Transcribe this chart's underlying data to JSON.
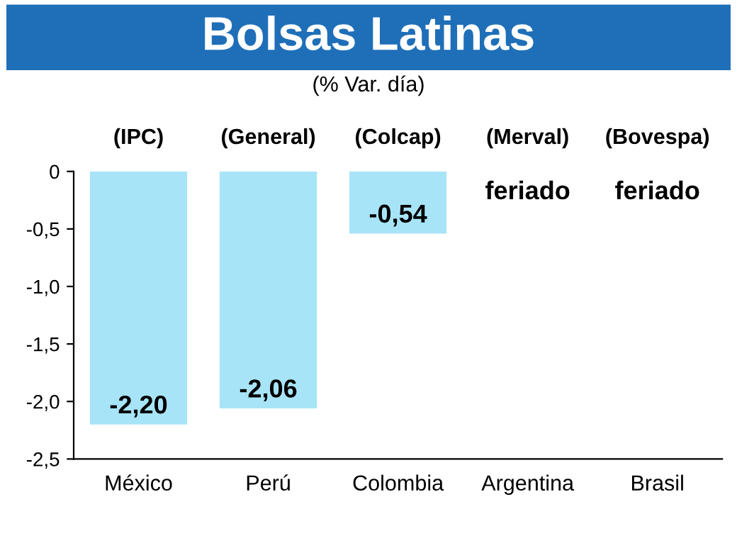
{
  "chart_data": {
    "type": "bar",
    "title": "Bolsas Latinas",
    "subtitle": "(% Var. día)",
    "categories": [
      "México",
      "Perú",
      "Colombia",
      "Argentina",
      "Brasil"
    ],
    "values": [
      -2.2,
      -2.06,
      -0.54,
      null,
      null
    ],
    "value_labels": [
      "-2,20",
      "-2,06",
      "-0,54",
      "feriado",
      "feriado"
    ],
    "color": "#a8e4f7",
    "annotations": [
      "(IPC)",
      "(General)",
      "(Colcap)",
      "(Merval)",
      "(Bovespa)"
    ],
    "ylim": [
      -2.5,
      0
    ],
    "yticks": [
      {
        "value": 0,
        "label": "0"
      },
      {
        "value": -0.5,
        "label": "-0,5"
      },
      {
        "value": -1.0,
        "label": "-1,0"
      },
      {
        "value": -1.5,
        "label": "-1,5"
      },
      {
        "value": -2.0,
        "label": "-2,0"
      },
      {
        "value": -2.5,
        "label": "-2,5"
      }
    ],
    "grid": false,
    "legend": false
  }
}
